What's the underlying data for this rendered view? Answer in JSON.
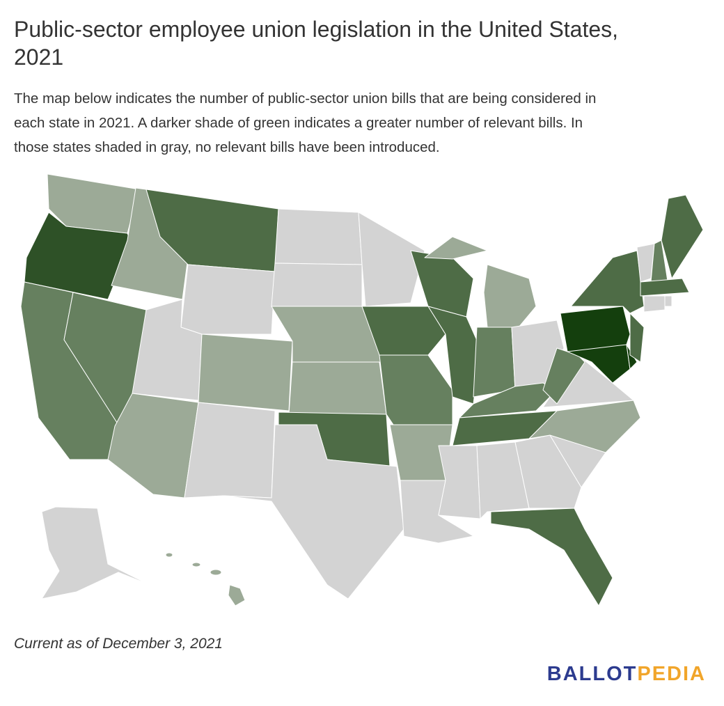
{
  "header": {
    "title_line1": "Public-sector employee union legislation in the United States,",
    "title_line2": "2021",
    "description": [
      "The map below indicates the number of public-sector union bills that are being considered in",
      "each state in 2021. A darker shade of green indicates a greater number of relevant bills. In",
      "those states shaded in gray, no relevant bills have been introduced."
    ]
  },
  "map": {
    "shades": [
      "#d3d3d3",
      "#9caa97",
      "#66805f",
      "#4e6c46",
      "#2e5127",
      "#143f0d"
    ],
    "border_color": "#ffffff"
  },
  "footer": {
    "note": "Current as of December 3, 2021",
    "logo_part1": "BALLOT",
    "logo_part2": "PEDIA"
  }
}
